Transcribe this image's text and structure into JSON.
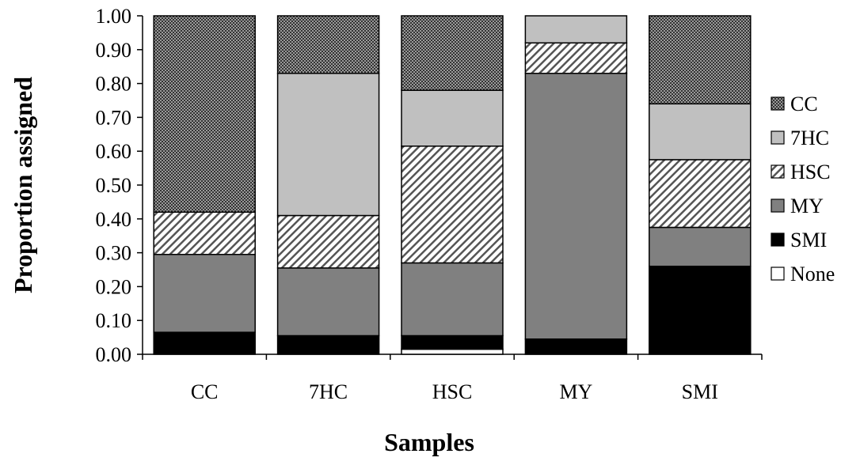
{
  "chart_data": {
    "type": "bar",
    "stacked": true,
    "xlabel": "Samples",
    "ylabel": "Proportion assigned",
    "ylim": [
      0,
      1
    ],
    "yticks": [
      "0.00",
      "0.10",
      "0.20",
      "0.30",
      "0.40",
      "0.50",
      "0.60",
      "0.70",
      "0.80",
      "0.90",
      "1.00"
    ],
    "grid": false,
    "legend_position": "right",
    "categories": [
      "CC",
      "7HC",
      "HSC",
      "MY",
      "SMI"
    ],
    "series": [
      {
        "name": "None",
        "values": [
          0.0,
          0.0,
          0.015,
          0.0,
          0.0
        ],
        "fill": "white"
      },
      {
        "name": "SMI",
        "values": [
          0.065,
          0.055,
          0.04,
          0.045,
          0.26
        ],
        "fill": "black"
      },
      {
        "name": "MY",
        "values": [
          0.23,
          0.2,
          0.215,
          0.785,
          0.115
        ],
        "fill": "gray"
      },
      {
        "name": "HSC",
        "values": [
          0.125,
          0.155,
          0.345,
          0.09,
          0.2
        ],
        "fill": "hatch"
      },
      {
        "name": "7HC",
        "values": [
          0.0,
          0.42,
          0.165,
          0.08,
          0.165
        ],
        "fill": "lightgray"
      },
      {
        "name": "CC",
        "values": [
          0.58,
          0.17,
          0.22,
          0.0,
          0.26
        ],
        "fill": "dots"
      }
    ],
    "legend_order": [
      "CC",
      "7HC",
      "HSC",
      "MY",
      "SMI",
      "None"
    ]
  },
  "colors": {
    "black": "#000000",
    "gray": "#808080",
    "lightgray": "#c0c0c0",
    "white": "#ffffff",
    "dot_dark": "#3a3a3a",
    "dot_light": "#9a9a9a"
  }
}
